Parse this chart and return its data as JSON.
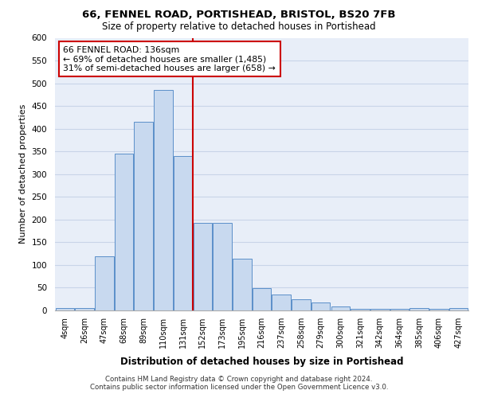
{
  "title_line1": "66, FENNEL ROAD, PORTISHEAD, BRISTOL, BS20 7FB",
  "title_line2": "Size of property relative to detached houses in Portishead",
  "xlabel": "Distribution of detached houses by size in Portishead",
  "ylabel": "Number of detached properties",
  "categories": [
    "4sqm",
    "26sqm",
    "47sqm",
    "68sqm",
    "89sqm",
    "110sqm",
    "131sqm",
    "152sqm",
    "173sqm",
    "195sqm",
    "216sqm",
    "237sqm",
    "258sqm",
    "279sqm",
    "300sqm",
    "321sqm",
    "342sqm",
    "364sqm",
    "385sqm",
    "406sqm",
    "427sqm"
  ],
  "values": [
    5,
    5,
    120,
    345,
    415,
    485,
    340,
    192,
    192,
    113,
    49,
    35,
    25,
    18,
    8,
    4,
    3,
    3,
    5,
    3,
    5
  ],
  "bar_color": "#c8d9ef",
  "bar_edge_color": "#5b8fc9",
  "vline_color": "#cc0000",
  "vline_index": 6,
  "annotation_title": "66 FENNEL ROAD: 136sqm",
  "annotation_line1": "← 69% of detached houses are smaller (1,485)",
  "annotation_line2": "31% of semi-detached houses are larger (658) →",
  "annotation_box_color": "#ffffff",
  "annotation_box_edge": "#cc0000",
  "ylim": [
    0,
    600
  ],
  "yticks": [
    0,
    50,
    100,
    150,
    200,
    250,
    300,
    350,
    400,
    450,
    500,
    550,
    600
  ],
  "grid_color": "#c8d4e8",
  "background_color": "#e8eef8",
  "footer_line1": "Contains HM Land Registry data © Crown copyright and database right 2024.",
  "footer_line2": "Contains public sector information licensed under the Open Government Licence v3.0."
}
